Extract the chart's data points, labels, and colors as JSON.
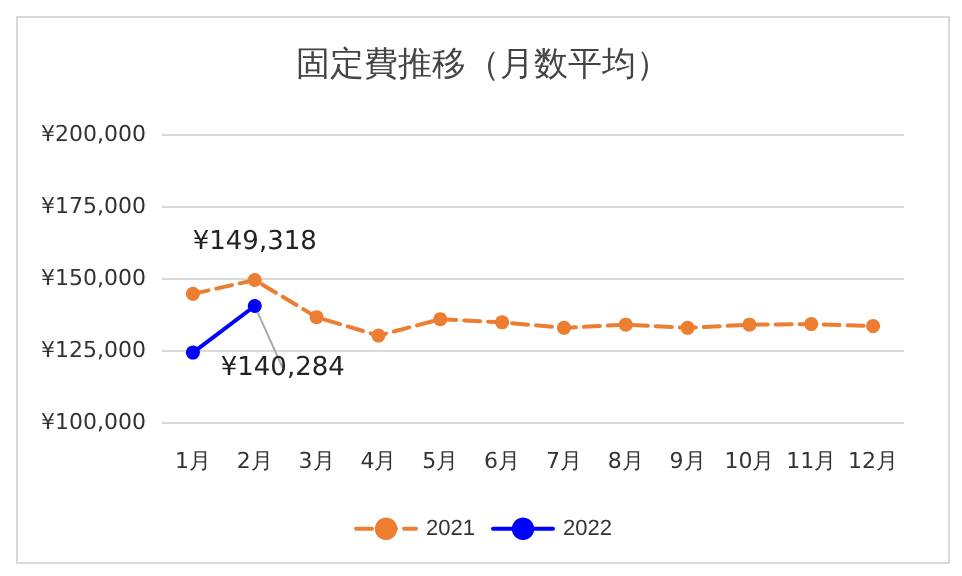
{
  "chart_data": {
    "type": "line",
    "title": "固定費推移（月数平均）",
    "categories": [
      "1月",
      "2月",
      "3月",
      "4月",
      "5月",
      "6月",
      "7月",
      "8月",
      "9月",
      "10月",
      "11月",
      "12月"
    ],
    "series": [
      {
        "name": "2021",
        "color": "#ed7d31",
        "line_style": "dashed",
        "values": [
          144500,
          149318,
          136400,
          130000,
          135700,
          134600,
          132700,
          133800,
          132700,
          133800,
          134000,
          133300
        ],
        "value_labels": [
          null,
          "¥149,318",
          null,
          null,
          null,
          null,
          null,
          null,
          null,
          null,
          null,
          null
        ]
      },
      {
        "name": "2022",
        "color": "#0000ff",
        "line_style": "solid",
        "values": [
          124100,
          140284,
          null,
          null,
          null,
          null,
          null,
          null,
          null,
          null,
          null,
          null
        ],
        "value_labels": [
          null,
          "¥140,284",
          null,
          null,
          null,
          null,
          null,
          null,
          null,
          null,
          null,
          null
        ]
      }
    ],
    "ylim": [
      100000,
      200000
    ],
    "yticks": [
      {
        "value": 100000,
        "label": "¥100,000"
      },
      {
        "value": 125000,
        "label": "¥125,000"
      },
      {
        "value": 150000,
        "label": "¥150,000"
      },
      {
        "value": 175000,
        "label": "¥175,000"
      },
      {
        "value": 200000,
        "label": "¥200,000"
      }
    ],
    "grid": "y",
    "legend": "bottom",
    "marker": "circle"
  }
}
